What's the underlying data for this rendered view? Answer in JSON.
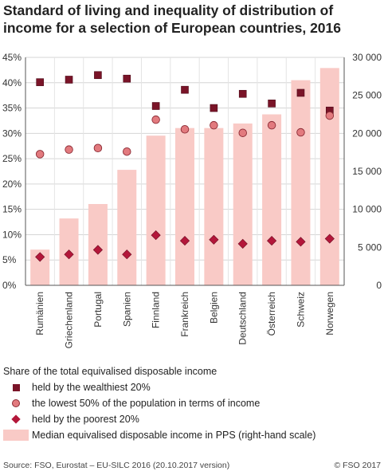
{
  "title": "Standard of living and inequality of distribution of income for a selection of European countries, 2016",
  "chart_data": {
    "type": "bar",
    "categories": [
      "Rumänien",
      "Griechenland",
      "Portugal",
      "Spanien",
      "Finnland",
      "Frankreich",
      "Belgien",
      "Deutschland",
      "Österreich",
      "Schweiz",
      "Norwegen"
    ],
    "left_axis": {
      "min": 0,
      "max": 45,
      "step": 5,
      "ticks": [
        "0%",
        "5%",
        "10%",
        "15%",
        "20%",
        "25%",
        "30%",
        "35%",
        "40%",
        "45%"
      ]
    },
    "right_axis": {
      "min": 0,
      "max": 30000,
      "step": 5000,
      "ticks": [
        "0",
        "5 000",
        "10 000",
        "15 000",
        "20 000",
        "25 000",
        "30 000"
      ]
    },
    "grid": true,
    "series": [
      {
        "name": "Median equivalised disposable income in PPS (right-hand scale)",
        "type": "bar",
        "axis": "right",
        "color": "#f9cac6",
        "values": [
          4700,
          8800,
          10700,
          15200,
          19700,
          20700,
          20700,
          21300,
          22500,
          27000,
          28600
        ]
      },
      {
        "name": "held by the wealthiest 20%",
        "type": "marker-square",
        "axis": "left",
        "color": "#7a1428",
        "values": [
          40.1,
          40.6,
          41.5,
          40.8,
          35.4,
          38.6,
          35.0,
          37.8,
          35.9,
          38.0,
          34.5
        ]
      },
      {
        "name": "the lowest 50% of the population in terms of income",
        "type": "marker-circle",
        "axis": "left",
        "color": "#e27a7e",
        "values": [
          25.9,
          26.8,
          27.1,
          26.4,
          32.7,
          30.8,
          31.6,
          30.1,
          31.6,
          30.2,
          33.5
        ]
      },
      {
        "name": "held by the poorest 20%",
        "type": "marker-diamond",
        "axis": "left",
        "color": "#b3173a",
        "values": [
          5.6,
          6.1,
          7.0,
          6.1,
          9.9,
          8.8,
          9.0,
          8.2,
          8.8,
          8.6,
          9.2
        ]
      }
    ]
  },
  "legend": {
    "heading": "Share of the total equivalised disposable income",
    "items": [
      {
        "label": "held by the wealthiest 20%"
      },
      {
        "label": "the lowest 50% of the population in terms of income"
      },
      {
        "label": "held by the poorest 20%"
      },
      {
        "label": "Median equivalised disposable income in PPS (right-hand scale)"
      }
    ]
  },
  "footer": {
    "source": "Source: FSO, Eurostat – EU-SILC 2016 (20.10.2017 version)",
    "copyright": "© FSO 2017"
  }
}
